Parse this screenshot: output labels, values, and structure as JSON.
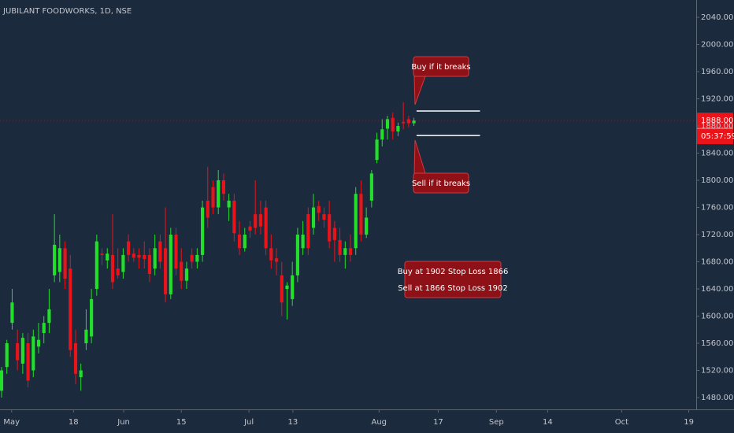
{
  "chart_data": {
    "type": "candlestick",
    "title": "JUBILANT FOODWORKS, 1D, NSE",
    "up_color": "#22e02a",
    "down_color": "#e8141a",
    "open": [
      1490,
      1525,
      1590,
      1560,
      1530,
      1560,
      1520,
      1555,
      1575,
      1590,
      1660,
      1665,
      1700,
      1670,
      1560,
      1510,
      1560,
      1570,
      1640,
      1692,
      1682,
      1690,
      1670,
      1665,
      1710,
      1692,
      1690,
      1690,
      1690,
      1670,
      1710,
      1700,
      1632,
      1720,
      1680,
      1652,
      1690,
      1680,
      1690,
      1770,
      1790,
      1760,
      1800,
      1760,
      1770,
      1720,
      1700,
      1732,
      1750,
      1750,
      1760,
      1700,
      1685,
      1660,
      1640,
      1625,
      1660,
      1700,
      1750,
      1730,
      1762,
      1750,
      1750,
      1730,
      1712,
      1690,
      1700,
      1700,
      1780,
      1720,
      1770,
      1830,
      1860,
      1876,
      1892,
      1872,
      1886,
      1890,
      1884
    ],
    "high": [
      1525,
      1565,
      1640,
      1580,
      1575,
      1575,
      1580,
      1590,
      1600,
      1640,
      1750,
      1720,
      1710,
      1690,
      1580,
      1530,
      1610,
      1640,
      1720,
      1700,
      1700,
      1750,
      1700,
      1700,
      1720,
      1700,
      1700,
      1710,
      1700,
      1720,
      1720,
      1760,
      1730,
      1730,
      1700,
      1680,
      1700,
      1700,
      1770,
      1820,
      1800,
      1815,
      1810,
      1780,
      1780,
      1740,
      1730,
      1740,
      1800,
      1770,
      1770,
      1720,
      1700,
      1680,
      1650,
      1680,
      1730,
      1740,
      1760,
      1780,
      1770,
      1760,
      1770,
      1740,
      1730,
      1710,
      1720,
      1790,
      1800,
      1760,
      1815,
      1870,
      1890,
      1895,
      1900,
      1885,
      1915,
      1895,
      1892
    ],
    "low": [
      1480,
      1515,
      1580,
      1520,
      1515,
      1495,
      1510,
      1545,
      1560,
      1575,
      1650,
      1650,
      1640,
      1540,
      1500,
      1490,
      1550,
      1560,
      1630,
      1675,
      1670,
      1640,
      1655,
      1655,
      1680,
      1680,
      1670,
      1670,
      1650,
      1660,
      1670,
      1620,
      1625,
      1660,
      1640,
      1640,
      1670,
      1670,
      1680,
      1730,
      1750,
      1750,
      1770,
      1740,
      1710,
      1690,
      1695,
      1715,
      1720,
      1720,
      1690,
      1670,
      1660,
      1600,
      1595,
      1615,
      1650,
      1690,
      1690,
      1720,
      1740,
      1730,
      1700,
      1680,
      1680,
      1670,
      1680,
      1690,
      1710,
      1715,
      1760,
      1825,
      1850,
      1860,
      1860,
      1865,
      1875,
      1878,
      1880
    ],
    "close": [
      1520,
      1560,
      1620,
      1535,
      1568,
      1505,
      1570,
      1565,
      1590,
      1610,
      1705,
      1700,
      1655,
      1550,
      1515,
      1520,
      1580,
      1625,
      1710,
      1690,
      1692,
      1650,
      1660,
      1690,
      1690,
      1686,
      1686,
      1684,
      1662,
      1700,
      1680,
      1632,
      1720,
      1670,
      1652,
      1670,
      1680,
      1690,
      1760,
      1745,
      1760,
      1800,
      1780,
      1770,
      1722,
      1700,
      1720,
      1726,
      1730,
      1732,
      1700,
      1682,
      1680,
      1620,
      1645,
      1660,
      1720,
      1720,
      1700,
      1760,
      1752,
      1742,
      1710,
      1712,
      1690,
      1700,
      1690,
      1780,
      1720,
      1745,
      1810,
      1860,
      1875,
      1890,
      1872,
      1880,
      1884,
      1884,
      1888
    ],
    "xlim": [
      -0.3,
      131.4
    ],
    "xticks": [
      {
        "value": 1.9,
        "label": "May"
      },
      {
        "value": 13.6,
        "label": "18"
      },
      {
        "value": 23.1,
        "label": "Jun"
      },
      {
        "value": 34,
        "label": "15"
      },
      {
        "value": 46.8,
        "label": "Jul"
      },
      {
        "value": 55.1,
        "label": "13"
      },
      {
        "value": 71.4,
        "label": "Aug"
      },
      {
        "value": 82.6,
        "label": "17"
      },
      {
        "value": 93.6,
        "label": "Sep"
      },
      {
        "value": 103.3,
        "label": "14"
      },
      {
        "value": 117.3,
        "label": "Oct"
      },
      {
        "value": 130,
        "label": "19"
      }
    ],
    "ylim": [
      1462.6,
      2065.5
    ],
    "yticks": [
      {
        "value": 1480,
        "label": "1480.00"
      },
      {
        "value": 1520,
        "label": "1520.00"
      },
      {
        "value": 1560,
        "label": "1560.00"
      },
      {
        "value": 1600,
        "label": "1600.00"
      },
      {
        "value": 1640,
        "label": "1640.00"
      },
      {
        "value": 1680,
        "label": "1680.00"
      },
      {
        "value": 1720,
        "label": "1720.00"
      },
      {
        "value": 1760,
        "label": "1760.00"
      },
      {
        "value": 1800,
        "label": "1800.00"
      },
      {
        "value": 1840,
        "label": "1840.00"
      },
      {
        "value": 1880,
        "label": "1880.00"
      },
      {
        "value": 1920,
        "label": "1920.00"
      },
      {
        "value": 1960,
        "label": "1960.00"
      },
      {
        "value": 2000,
        "label": "2000.00"
      },
      {
        "value": 2040,
        "label": "2040.00"
      }
    ],
    "levels": [
      1902,
      1866
    ],
    "last_price": {
      "value": 1888,
      "label": "1888.00"
    },
    "countdown": "05:37:59",
    "annotations": [
      "Buy if it breaks",
      "Sell if it breaks",
      "Buy at 1902 Stop Loss 1866",
      "Sell at 1866 Stop Loss 1902"
    ]
  }
}
